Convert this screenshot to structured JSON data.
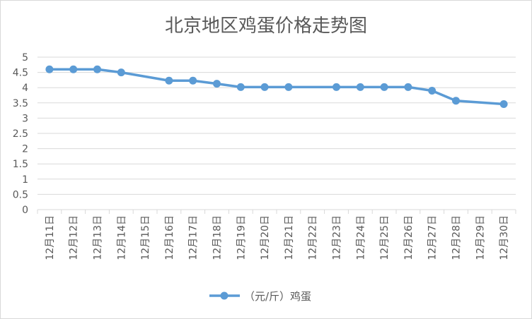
{
  "chart_data": {
    "type": "line",
    "title": "北京地区鸡蛋价格走势图",
    "categories": [
      "12月11日",
      "12月12日",
      "12月13日",
      "12月14日",
      "12月15日",
      "12月16日",
      "12月17日",
      "12月18日",
      "12月19日",
      "12月20日",
      "12月21日",
      "12月22日",
      "12月23日",
      "12月24日",
      "12月25日",
      "12月26日",
      "12月27日",
      "12月28日",
      "12月29日",
      "12月30日"
    ],
    "series": [
      {
        "name": "（元/斤）鸡蛋",
        "values": [
          4.6,
          4.6,
          4.6,
          4.5,
          null,
          4.23,
          4.23,
          4.13,
          4.02,
          4.02,
          4.02,
          null,
          4.02,
          4.02,
          4.02,
          4.02,
          3.9,
          3.57,
          null,
          3.46
        ]
      }
    ],
    "ylim": [
      0,
      5
    ],
    "yticks": [
      "0",
      "0.5",
      "1",
      "1.5",
      "2",
      "2.5",
      "3",
      "3.5",
      "4",
      "4.5",
      "5"
    ],
    "grid": true,
    "legend": "bottom",
    "colors": {
      "series": "#5b9bd5",
      "grid": "#d9d9d9",
      "text": "#595959"
    }
  }
}
